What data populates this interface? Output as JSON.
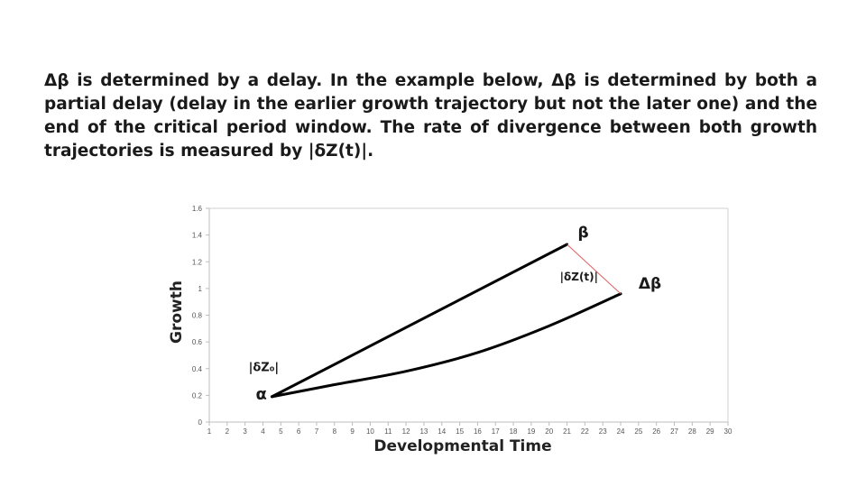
{
  "paragraph": "Δβ is determined by a delay. In the example below, Δβ is determined by both a partial delay (delay in the earlier growth trajectory but not the later one) and the end of the critical period window. The rate of divergence between both growth trajectories is measured by |δZ(t)|.",
  "chart_data": {
    "type": "line",
    "xlabel": "Developmental Time",
    "ylabel": "Growth",
    "xlim": [
      1,
      30
    ],
    "ylim": [
      0,
      1.6
    ],
    "x_ticks": [
      "1",
      "2",
      "3",
      "4",
      "5",
      "6",
      "7",
      "8",
      "9",
      "10",
      "11",
      "12",
      "13",
      "14",
      "15",
      "16",
      "17",
      "18",
      "19",
      "20",
      "21",
      "22",
      "23",
      "24",
      "25",
      "26",
      "27",
      "28",
      "29",
      "30"
    ],
    "y_ticks": [
      "0",
      "0.2",
      "0.4",
      "0.6",
      "0.8",
      "1",
      "1.2",
      "1.4",
      "1.6"
    ],
    "grid": "horizontal top only",
    "series": [
      {
        "x": [
          4.5,
          21
        ],
        "y": [
          0.19,
          1.33
        ],
        "color": "#000000"
      },
      {
        "x": [
          4.5,
          8,
          12,
          16,
          20,
          24
        ],
        "y": [
          0.19,
          0.28,
          0.38,
          0.52,
          0.72,
          0.96
        ],
        "color": "#000000"
      }
    ],
    "divergence_line": {
      "x": [
        21,
        24
      ],
      "y": [
        1.33,
        0.96
      ],
      "color": "#e06060"
    },
    "annotations": [
      {
        "text": "β",
        "x": 21.6,
        "y": 1.38
      },
      {
        "text": "|δZ(t)|",
        "x": 20.6,
        "y": 1.06
      },
      {
        "text": "Δβ",
        "x": 25.0,
        "y": 1.0
      },
      {
        "text": "|δZ₀|",
        "x": 3.2,
        "y": 0.38
      },
      {
        "text": "α",
        "x": 3.6,
        "y": 0.17
      }
    ]
  }
}
